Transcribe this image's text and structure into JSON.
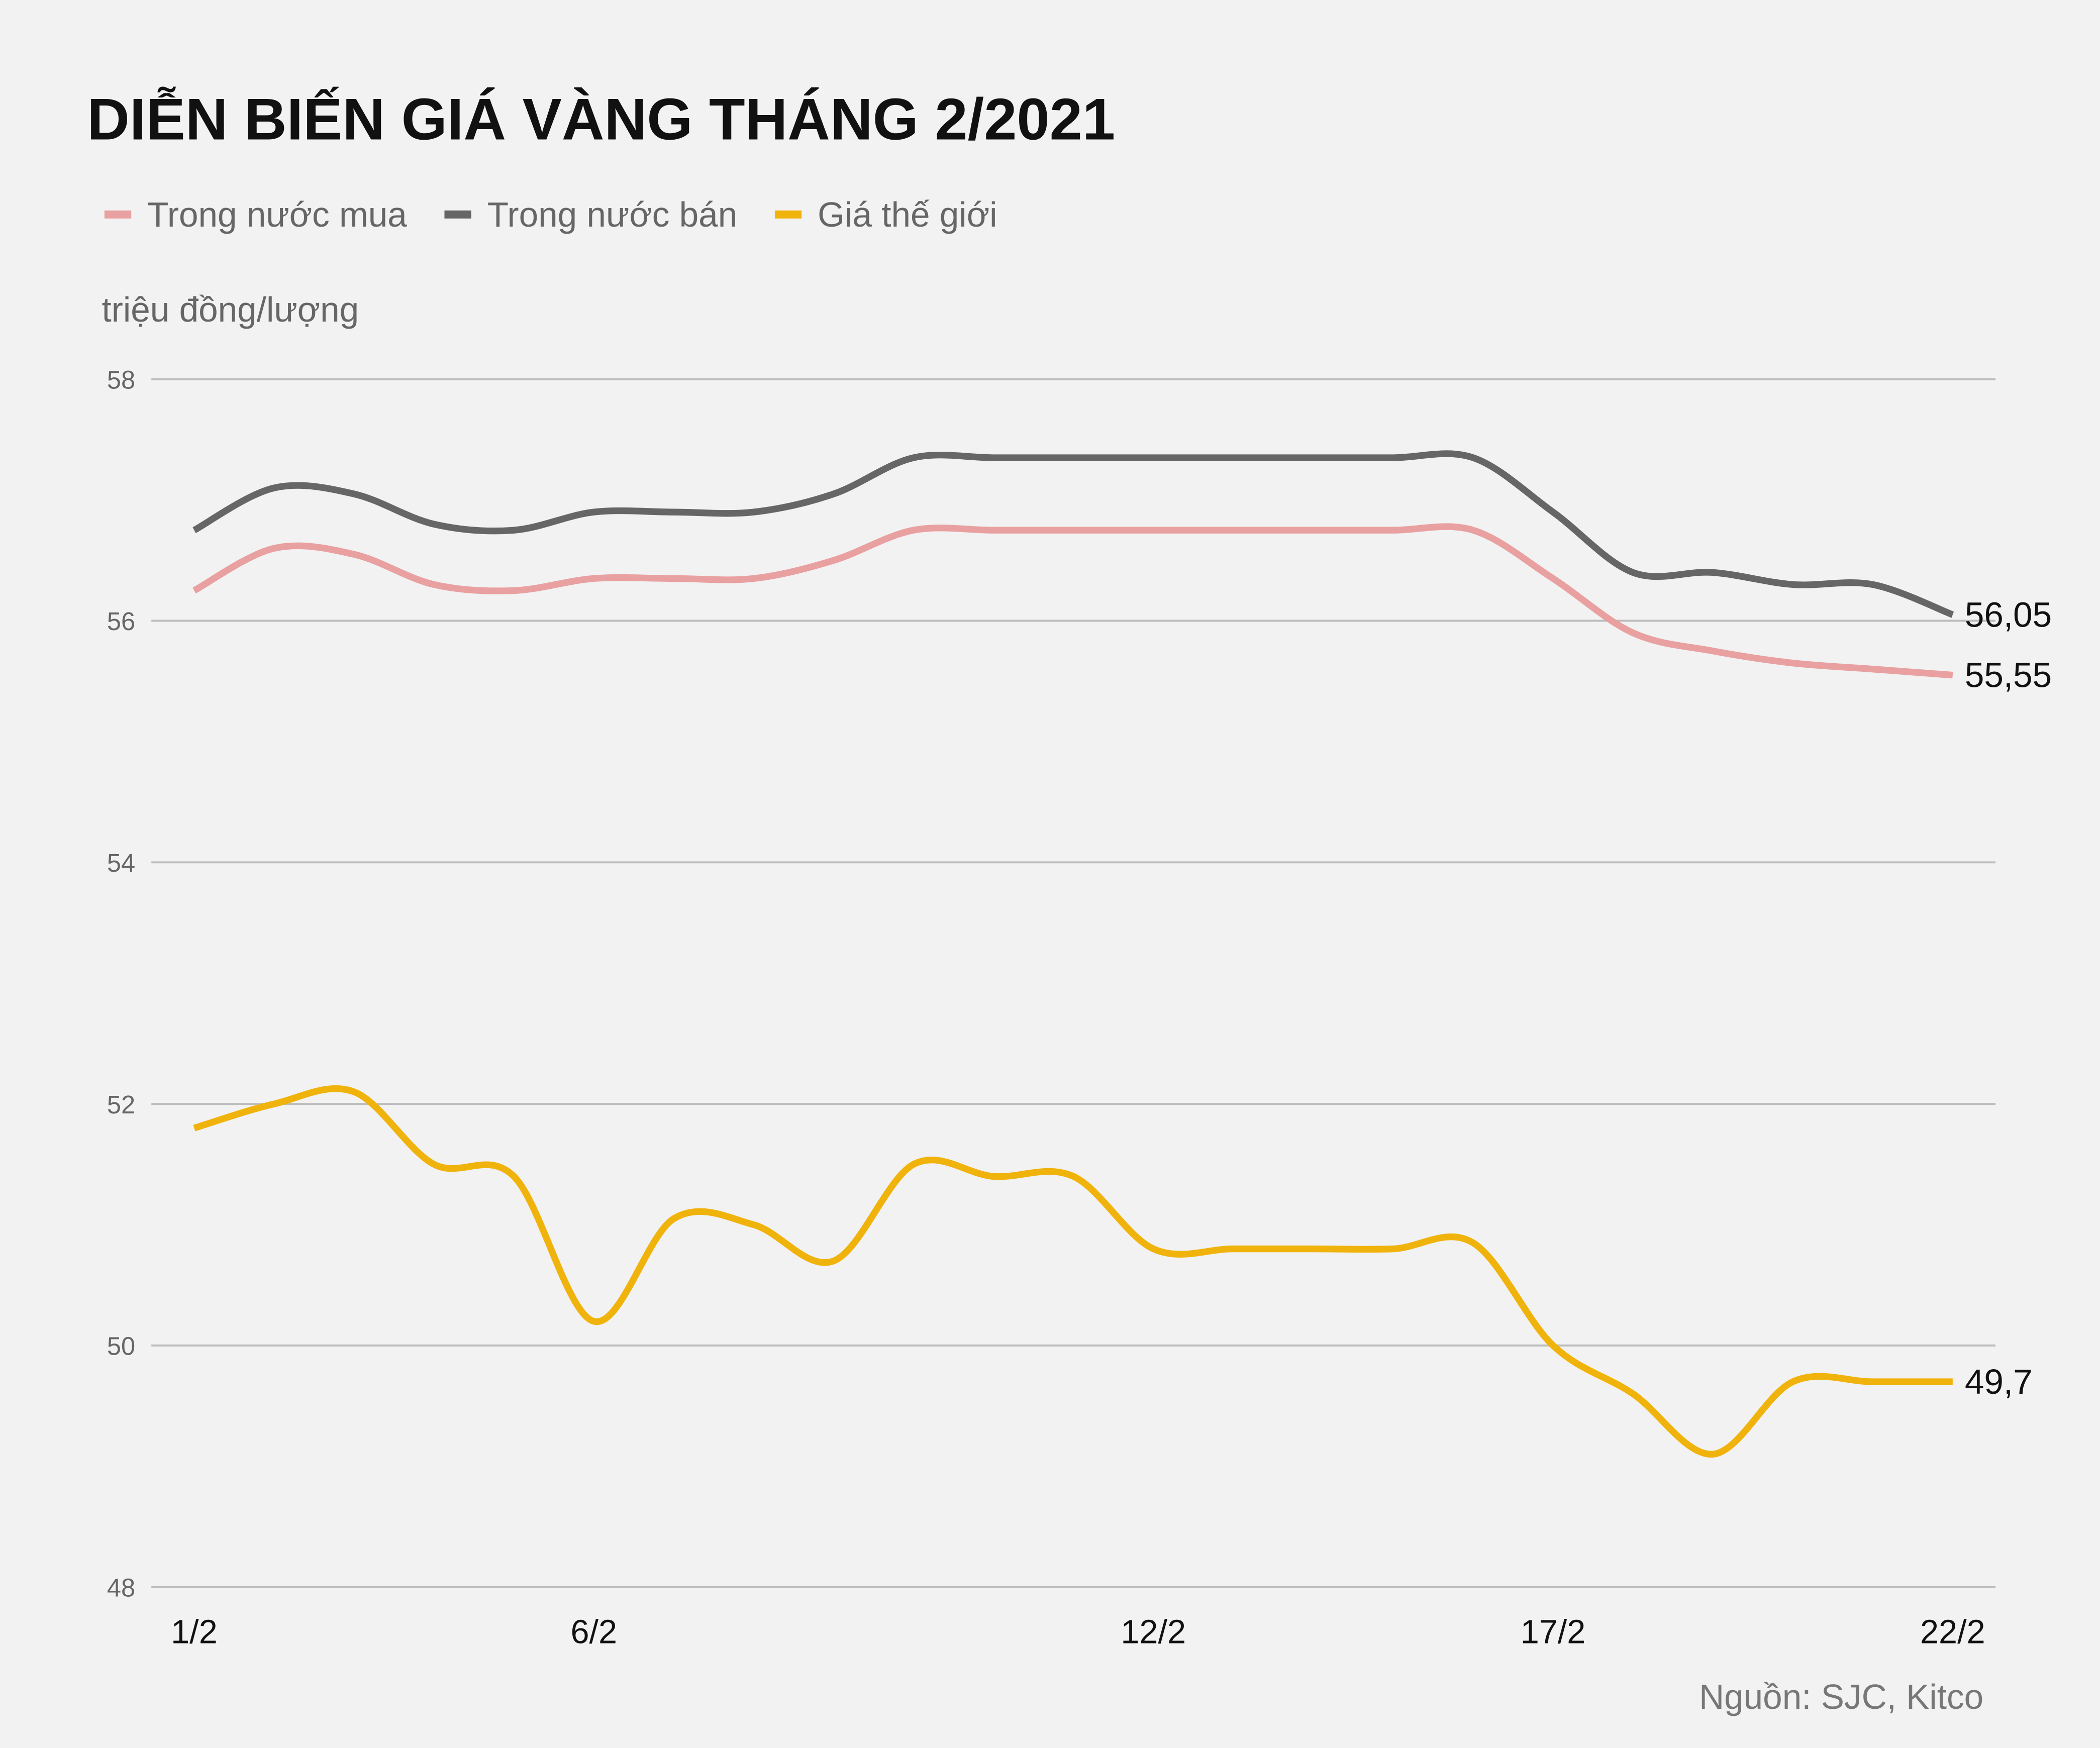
{
  "chart_data": {
    "type": "line",
    "title": "DIỄN BIẾN GIÁ VÀNG THÁNG 2/2021",
    "y_label": "triệu đồng/lượng",
    "source": "Nguồn: SJC, Kitco",
    "categories": [
      "1/2",
      null,
      null,
      null,
      null,
      "6/2",
      null,
      null,
      null,
      null,
      null,
      null,
      "12/2",
      null,
      null,
      null,
      null,
      "17/2",
      null,
      null,
      null,
      null,
      "22/2"
    ],
    "series": [
      {
        "name": "Trong nước mua",
        "color": "#e9a0a0",
        "values": [
          56.25,
          56.6,
          56.55,
          56.3,
          56.25,
          56.35,
          56.35,
          56.35,
          56.5,
          56.75,
          56.75,
          56.75,
          56.75,
          56.75,
          56.75,
          56.75,
          56.75,
          56.35,
          55.9,
          55.75,
          55.65,
          55.6,
          55.55
        ],
        "value_labels": [
          null,
          null,
          null,
          null,
          null,
          null,
          null,
          null,
          null,
          null,
          null,
          null,
          null,
          null,
          null,
          null,
          null,
          null,
          null,
          null,
          null,
          null,
          "55,55"
        ]
      },
      {
        "name": "Trong nước bán",
        "color": "#666666",
        "values": [
          56.75,
          57.1,
          57.05,
          56.8,
          56.75,
          56.9,
          56.9,
          56.9,
          57.05,
          57.35,
          57.35,
          57.35,
          57.35,
          57.35,
          57.35,
          57.35,
          57.35,
          56.9,
          56.4,
          56.4,
          56.3,
          56.3,
          56.05
        ],
        "value_labels": [
          null,
          null,
          null,
          null,
          null,
          null,
          null,
          null,
          null,
          null,
          null,
          null,
          null,
          null,
          null,
          null,
          null,
          null,
          null,
          null,
          null,
          null,
          "56,05"
        ]
      },
      {
        "name": "Giá thế giới",
        "color": "#f0b30c",
        "values": [
          51.8,
          52.0,
          52.1,
          51.5,
          51.4,
          50.2,
          51.05,
          51.0,
          50.7,
          51.5,
          51.4,
          51.4,
          50.8,
          50.8,
          50.8,
          50.8,
          50.85,
          50.0,
          49.6,
          49.1,
          49.7,
          49.7,
          49.7
        ],
        "value_labels": [
          null,
          null,
          null,
          null,
          null,
          null,
          null,
          null,
          null,
          null,
          null,
          null,
          null,
          null,
          null,
          null,
          null,
          null,
          null,
          null,
          null,
          null,
          "49,7"
        ]
      }
    ],
    "ylim": [
      48,
      58
    ],
    "yticks": [
      48,
      50,
      52,
      54,
      56,
      58
    ],
    "grid": true
  }
}
